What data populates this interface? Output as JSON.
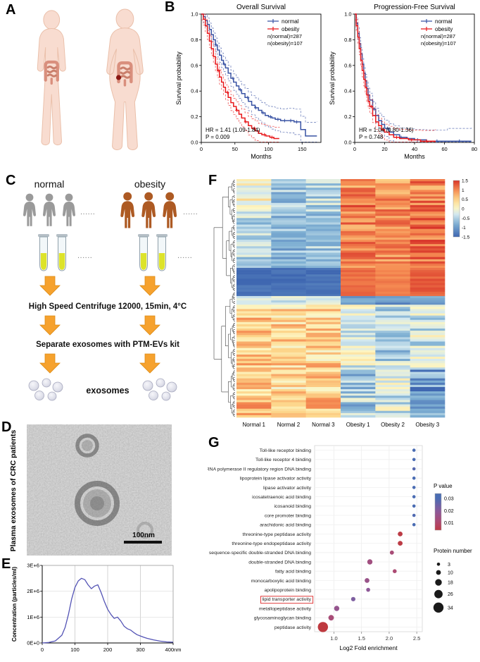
{
  "figure": {
    "background": "#ffffff",
    "panels": {
      "a": "A",
      "b": "B",
      "c": "C",
      "d": "D",
      "e": "E",
      "f": "F",
      "g": "G"
    }
  },
  "colors": {
    "body_fill": "#f8dcd0",
    "body_stroke": "#eabfa9",
    "intestine": "#d98f7d",
    "intestine_dark": "#c97e6b",
    "tumor": "#8a1713",
    "gray_person": "#9a9a9a",
    "obese_person": "#ad5a23",
    "arrow": "#f6a22e",
    "tube_liquid": "#dde32a",
    "highlight_box": "#e03a3a"
  },
  "panel_c": {
    "normal_label": "normal",
    "obesity_label": "obesity",
    "dots": "......",
    "step1": "High Speed Centrifuge 12000, 15min, 4°C",
    "step2": "Separate exosomes with PTM-EVs kit",
    "exosomes_label": "exosomes"
  },
  "panel_d": {
    "side_label": "Plasma exosomes of CRC patients",
    "scale_label": "100nm"
  },
  "chart_data": [
    {
      "id": "overall_survival",
      "type": "line",
      "title": "Overall Survival",
      "xlabel": "Months",
      "ylabel": "Survival probability",
      "xlim": [
        0,
        178
      ],
      "xticks": [
        0,
        50,
        100,
        150
      ],
      "ylim": [
        0,
        1
      ],
      "yticks": [
        0,
        0.2,
        0.4,
        0.6,
        0.8,
        1
      ],
      "legend_note": [
        "n(normal)=287",
        "n(obesity)=107"
      ],
      "annotation": [
        "HR = 1.41 (1.09-1.84)",
        "P = 0.009"
      ],
      "series": [
        {
          "name": "normal",
          "color": "#3953a4",
          "steps": [
            [
              0,
              1
            ],
            [
              3,
              0.98
            ],
            [
              6,
              0.95
            ],
            [
              9,
              0.92
            ],
            [
              12,
              0.88
            ],
            [
              15,
              0.84
            ],
            [
              18,
              0.8
            ],
            [
              21,
              0.76
            ],
            [
              24,
              0.72
            ],
            [
              27,
              0.68
            ],
            [
              30,
              0.64
            ],
            [
              33,
              0.61
            ],
            [
              36,
              0.58
            ],
            [
              40,
              0.54
            ],
            [
              44,
              0.5
            ],
            [
              48,
              0.47
            ],
            [
              52,
              0.44
            ],
            [
              56,
              0.41
            ],
            [
              60,
              0.38
            ],
            [
              65,
              0.35
            ],
            [
              70,
              0.32
            ],
            [
              75,
              0.29
            ],
            [
              80,
              0.27
            ],
            [
              85,
              0.25
            ],
            [
              90,
              0.23
            ],
            [
              95,
              0.21
            ],
            [
              100,
              0.2
            ],
            [
              105,
              0.19
            ],
            [
              110,
              0.18
            ],
            [
              118,
              0.17
            ],
            [
              128,
              0.17
            ],
            [
              138,
              0.16
            ],
            [
              148,
              0.1
            ],
            [
              155,
              0.05
            ],
            [
              172,
              0.05
            ]
          ],
          "censors": [
            22,
            34,
            47,
            58,
            69,
            81,
            92,
            103,
            114,
            124,
            133,
            142
          ]
        },
        {
          "name": "obesity",
          "color": "#e8191c",
          "steps": [
            [
              0,
              1
            ],
            [
              3,
              0.96
            ],
            [
              6,
              0.91
            ],
            [
              9,
              0.85
            ],
            [
              12,
              0.79
            ],
            [
              15,
              0.73
            ],
            [
              18,
              0.67
            ],
            [
              21,
              0.61
            ],
            [
              24,
              0.56
            ],
            [
              27,
              0.51
            ],
            [
              30,
              0.47
            ],
            [
              33,
              0.43
            ],
            [
              36,
              0.39
            ],
            [
              40,
              0.35
            ],
            [
              44,
              0.31
            ],
            [
              48,
              0.28
            ],
            [
              52,
              0.25
            ],
            [
              56,
              0.22
            ],
            [
              60,
              0.19
            ],
            [
              65,
              0.16
            ],
            [
              70,
              0.13
            ],
            [
              75,
              0.11
            ],
            [
              80,
              0.09
            ],
            [
              85,
              0.07
            ],
            [
              90,
              0.06
            ],
            [
              96,
              0.05
            ],
            [
              102,
              0.04
            ],
            [
              108,
              0.03
            ],
            [
              116,
              0.03
            ]
          ],
          "censors": [
            26,
            39,
            53,
            66,
            79,
            94,
            105
          ]
        }
      ]
    },
    {
      "id": "progression_free_survival",
      "type": "line",
      "title": "Progression-Free Survival",
      "xlabel": "Months",
      "ylabel": "Survival probability",
      "xlim": [
        0,
        80
      ],
      "xticks": [
        0,
        20,
        40,
        60,
        80
      ],
      "ylim": [
        0,
        1
      ],
      "yticks": [
        0,
        0.2,
        0.4,
        0.6,
        0.8,
        1
      ],
      "legend_note": [
        "n(normal)=287",
        "n(obesity)=107"
      ],
      "annotation": [
        "HR = 1.04 (0.80-1.36)",
        "P = 0.748"
      ],
      "series": [
        {
          "name": "normal",
          "color": "#3953a4",
          "steps": [
            [
              0,
              1
            ],
            [
              1,
              0.93
            ],
            [
              2,
              0.85
            ],
            [
              3,
              0.77
            ],
            [
              4,
              0.69
            ],
            [
              5,
              0.61
            ],
            [
              6,
              0.54
            ],
            [
              7,
              0.48
            ],
            [
              8,
              0.42
            ],
            [
              9,
              0.37
            ],
            [
              10,
              0.33
            ],
            [
              12,
              0.26
            ],
            [
              14,
              0.21
            ],
            [
              16,
              0.17
            ],
            [
              18,
              0.14
            ],
            [
              20,
              0.11
            ],
            [
              23,
              0.08
            ],
            [
              26,
              0.06
            ],
            [
              30,
              0.04
            ],
            [
              35,
              0.03
            ],
            [
              40,
              0.02
            ],
            [
              48,
              0.01
            ],
            [
              62,
              0.01
            ],
            [
              78,
              0.01
            ]
          ],
          "censors": [
            13,
            22,
            31,
            42,
            55,
            70
          ]
        },
        {
          "name": "obesity",
          "color": "#e8191c",
          "steps": [
            [
              0,
              1
            ],
            [
              1,
              0.91
            ],
            [
              2,
              0.82
            ],
            [
              3,
              0.73
            ],
            [
              4,
              0.64
            ],
            [
              5,
              0.56
            ],
            [
              6,
              0.49
            ],
            [
              7,
              0.43
            ],
            [
              8,
              0.37
            ],
            [
              9,
              0.32
            ],
            [
              10,
              0.28
            ],
            [
              12,
              0.21
            ],
            [
              14,
              0.16
            ],
            [
              16,
              0.13
            ],
            [
              18,
              0.1
            ],
            [
              20,
              0.08
            ],
            [
              23,
              0.06
            ],
            [
              26,
              0.04
            ],
            [
              30,
              0.03
            ],
            [
              36,
              0.02
            ],
            [
              44,
              0.01
            ],
            [
              54,
              0.01
            ]
          ],
          "censors": [
            11,
            19,
            28,
            38,
            48
          ]
        }
      ]
    },
    {
      "id": "nta_size_distribution",
      "type": "line",
      "ylabel": "Concentration (particles/ml)",
      "line_color": "#5353b5",
      "ylim": [
        0,
        3
      ],
      "yticks": [
        0,
        1,
        2,
        3
      ],
      "ytick_labels": [
        "0E+0",
        "1E+6",
        "2E+6",
        "3E+6"
      ],
      "xlim": [
        0,
        400
      ],
      "xticks": [
        0,
        100,
        200,
        300,
        400
      ],
      "xtick_labels": [
        "0",
        "100",
        "200",
        "300",
        "400nm"
      ],
      "x": [
        0,
        20,
        40,
        60,
        70,
        80,
        90,
        100,
        110,
        120,
        130,
        140,
        150,
        160,
        170,
        180,
        190,
        200,
        210,
        220,
        230,
        240,
        250,
        260,
        270,
        280,
        290,
        300,
        310,
        320,
        340,
        360,
        380,
        400
      ],
      "y": [
        0,
        0.02,
        0.08,
        0.3,
        0.6,
        1.1,
        1.7,
        2.15,
        2.4,
        2.5,
        2.45,
        2.25,
        2.1,
        2.2,
        2.25,
        1.95,
        1.6,
        1.3,
        1.1,
        0.95,
        1.0,
        0.85,
        0.65,
        0.55,
        0.5,
        0.4,
        0.32,
        0.27,
        0.22,
        0.18,
        0.12,
        0.07,
        0.04,
        0.03
      ]
    },
    {
      "id": "deg_heatmap",
      "type": "heatmap",
      "columns": [
        "Normal 1",
        "Normal 2",
        "Normal 3",
        "Obesity 1",
        "Obesity 2",
        "Obesity 3"
      ],
      "colorbar_ticks": [
        "1.5",
        "1",
        "0.5",
        "0",
        "-0.5",
        "-1",
        "-1.5"
      ],
      "vmin": -1.5,
      "vmax": 1.5,
      "n_rows": 110,
      "seed": 42,
      "color_stops": [
        [
          -1.5,
          "#3f67b1"
        ],
        [
          -0.8,
          "#7fb0d3"
        ],
        [
          -0.3,
          "#d3e8ef"
        ],
        [
          0.05,
          "#fdf6c3"
        ],
        [
          0.5,
          "#fdd58a"
        ],
        [
          1.0,
          "#f58a51"
        ],
        [
          1.5,
          "#d83429"
        ]
      ],
      "row_groups": [
        {
          "rows": [
            0,
            14
          ],
          "means": {
            "normal": [
              0.1,
              -0.55,
              -0.5
            ],
            "obesity": [
              1.0,
              0.85,
              1.05
            ]
          },
          "noise": 0.45
        },
        {
          "rows": [
            15,
            40
          ],
          "means": {
            "normal": [
              -0.45,
              -0.75,
              -0.6
            ],
            "obesity": [
              1.05,
              0.95,
              1.15
            ]
          },
          "noise": 0.4
        },
        {
          "rows": [
            41,
            53
          ],
          "means": {
            "normal": [
              -1.42,
              -1.45,
              -1.4
            ],
            "obesity": [
              1.15,
              1.05,
              1.25
            ]
          },
          "noise": 0.12
        },
        {
          "rows": [
            54,
            57
          ],
          "means": {
            "normal": [
              -0.25,
              -0.3,
              -0.2
            ],
            "obesity": [
              -1.0,
              -1.05,
              -0.9
            ]
          },
          "noise": 0.25
        },
        {
          "rows": [
            58,
            86
          ],
          "means": {
            "normal": [
              0.5,
              0.42,
              0.45
            ],
            "obesity": [
              -0.15,
              -0.45,
              -0.3
            ]
          },
          "noise": 0.5
        },
        {
          "rows": [
            87,
            109
          ],
          "means": {
            "normal": [
              0.55,
              0.48,
              0.5
            ],
            "obesity": [
              -0.55,
              -0.35,
              -0.95
            ]
          },
          "noise": 0.55
        }
      ]
    },
    {
      "id": "go_dotplot",
      "type": "scatter",
      "xlabel": "Log2 Fold enrichment",
      "xlim": [
        0.65,
        2.6
      ],
      "xticks": [
        1.0,
        1.5,
        2.0,
        2.5
      ],
      "xtick_labels": [
        "1.0",
        "1.5",
        "2.0",
        "2.5"
      ],
      "p_color_stops": [
        [
          0.001,
          "#c23531"
        ],
        [
          0.01,
          "#b0486e"
        ],
        [
          0.02,
          "#8a5a9b"
        ],
        [
          0.03,
          "#4a6cb3"
        ]
      ],
      "p_legend": {
        "title": "P value",
        "labels": [
          "0.03",
          "0.02",
          "0.01"
        ]
      },
      "size_legend": {
        "title": "Protein number",
        "values": [
          3,
          10,
          18,
          26,
          34
        ]
      },
      "points": [
        {
          "label": "Toll-like receptor binding",
          "x": 2.45,
          "p": 0.03,
          "n": 3
        },
        {
          "label": "Toll-like receptor 4 binding",
          "x": 2.45,
          "p": 0.03,
          "n": 3
        },
        {
          "label": "RNA polymerase II regulatory region DNA binding",
          "x": 2.45,
          "p": 0.028,
          "n": 3
        },
        {
          "label": "lipoprotein lipase activator activity",
          "x": 2.45,
          "p": 0.03,
          "n": 3
        },
        {
          "label": "lipase activator activity",
          "x": 2.45,
          "p": 0.03,
          "n": 3
        },
        {
          "label": "icosatetraenoic acid binding",
          "x": 2.45,
          "p": 0.03,
          "n": 3
        },
        {
          "label": "icosanoid binding",
          "x": 2.45,
          "p": 0.03,
          "n": 3
        },
        {
          "label": "core promoter binding",
          "x": 2.45,
          "p": 0.029,
          "n": 3
        },
        {
          "label": "arachidonic acid binding",
          "x": 2.45,
          "p": 0.03,
          "n": 3
        },
        {
          "label": "threonine-type peptidase activity",
          "x": 2.2,
          "p": 0.004,
          "n": 10
        },
        {
          "label": "threonine-type endopeptidase activity",
          "x": 2.2,
          "p": 0.004,
          "n": 10
        },
        {
          "label": "sequence-specific double-stranded DNA binding",
          "x": 2.05,
          "p": 0.012,
          "n": 7
        },
        {
          "label": "double-stranded DNA binding",
          "x": 1.65,
          "p": 0.014,
          "n": 12
        },
        {
          "label": "fatty acid binding",
          "x": 2.1,
          "p": 0.011,
          "n": 6
        },
        {
          "label": "monocarboxylic acid binding",
          "x": 1.6,
          "p": 0.016,
          "n": 10
        },
        {
          "label": "apolipoprotein binding",
          "x": 1.62,
          "p": 0.019,
          "n": 6
        },
        {
          "label": "lipid transporter activity",
          "x": 1.35,
          "p": 0.022,
          "n": 8,
          "highlight": true
        },
        {
          "label": "metallopeptidase activity",
          "x": 1.05,
          "p": 0.017,
          "n": 12
        },
        {
          "label": "glycosaminoglycan binding",
          "x": 0.95,
          "p": 0.012,
          "n": 13
        },
        {
          "label": "peptidase activity",
          "x": 0.8,
          "p": 0.003,
          "n": 34
        }
      ]
    }
  ]
}
